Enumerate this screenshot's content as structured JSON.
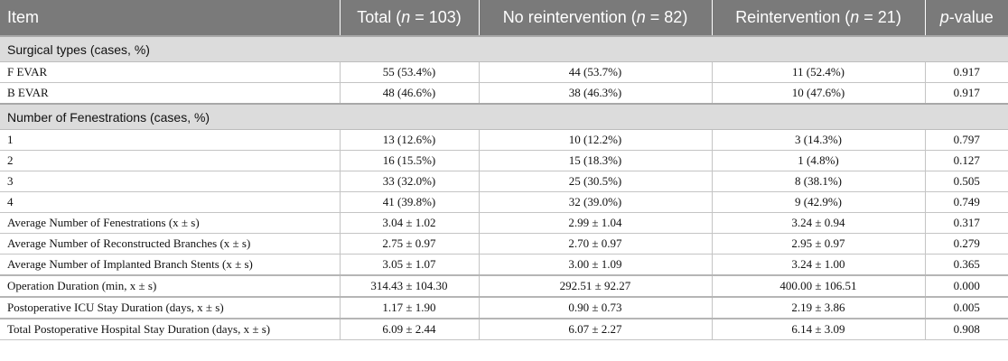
{
  "header": {
    "item": "Item",
    "total_prefix": "Total (",
    "total_n": "n",
    "total_suffix": " = 103)",
    "noreint_prefix": "No reintervention (",
    "noreint_n": "n",
    "noreint_suffix": " = 82)",
    "reint_prefix": "Reintervention (",
    "reint_n": "n",
    "reint_suffix": " = 21)",
    "pvalue_p": "p",
    "pvalue_suffix": "-value"
  },
  "sections": {
    "surgical": "Surgical types (cases, %)",
    "fenestrations": "Number of Fenestrations (cases, %)"
  },
  "rows": [
    {
      "label": "F EVAR",
      "total": "55 (53.4%)",
      "noreint": "44 (53.7%)",
      "reint": "11 (52.4%)",
      "p": "0.917"
    },
    {
      "label": "B EVAR",
      "total": "48 (46.6%)",
      "noreint": "38 (46.3%)",
      "reint": "10 (47.6%)",
      "p": "0.917"
    },
    {
      "label": "1",
      "total": "13 (12.6%)",
      "noreint": "10 (12.2%)",
      "reint": "3 (14.3%)",
      "p": "0.797"
    },
    {
      "label": "2",
      "total": "16 (15.5%)",
      "noreint": "15 (18.3%)",
      "reint": "1 (4.8%)",
      "p": "0.127"
    },
    {
      "label": "3",
      "total": "33 (32.0%)",
      "noreint": "25 (30.5%)",
      "reint": "8 (38.1%)",
      "p": "0.505"
    },
    {
      "label": "4",
      "total": "41 (39.8%)",
      "noreint": "32 (39.0%)",
      "reint": "9 (42.9%)",
      "p": "0.749"
    },
    {
      "label": "Average Number of Fenestrations (x ± s)",
      "total": "3.04 ± 1.02",
      "noreint": "2.99 ± 1.04",
      "reint": "3.24 ± 0.94",
      "p": "0.317"
    },
    {
      "label": "Average Number of Reconstructed Branches (x ± s)",
      "total": "2.75 ± 0.97",
      "noreint": "2.70 ± 0.97",
      "reint": "2.95 ± 0.97",
      "p": "0.279"
    },
    {
      "label": "Average Number of Implanted Branch Stents (x ± s)",
      "total": "3.05 ± 1.07",
      "noreint": "3.00 ± 1.09",
      "reint": "3.24 ± 1.00",
      "p": "0.365"
    },
    {
      "label": "Operation Duration (min, x ± s)",
      "total": "314.43 ± 104.30",
      "noreint": "292.51 ± 92.27",
      "reint": "400.00 ± 106.51",
      "p": "0.000"
    },
    {
      "label": "Postoperative ICU Stay Duration (days, x ± s)",
      "total": "1.17 ± 1.90",
      "noreint": "0.90 ± 0.73",
      "reint": "2.19 ± 3.86",
      "p": "0.005"
    },
    {
      "label": "Total Postoperative Hospital Stay Duration (days, x ± s)",
      "total": "6.09 ± 2.44",
      "noreint": "6.07 ± 2.27",
      "reint": "6.14 ± 3.09",
      "p": "0.908"
    }
  ]
}
